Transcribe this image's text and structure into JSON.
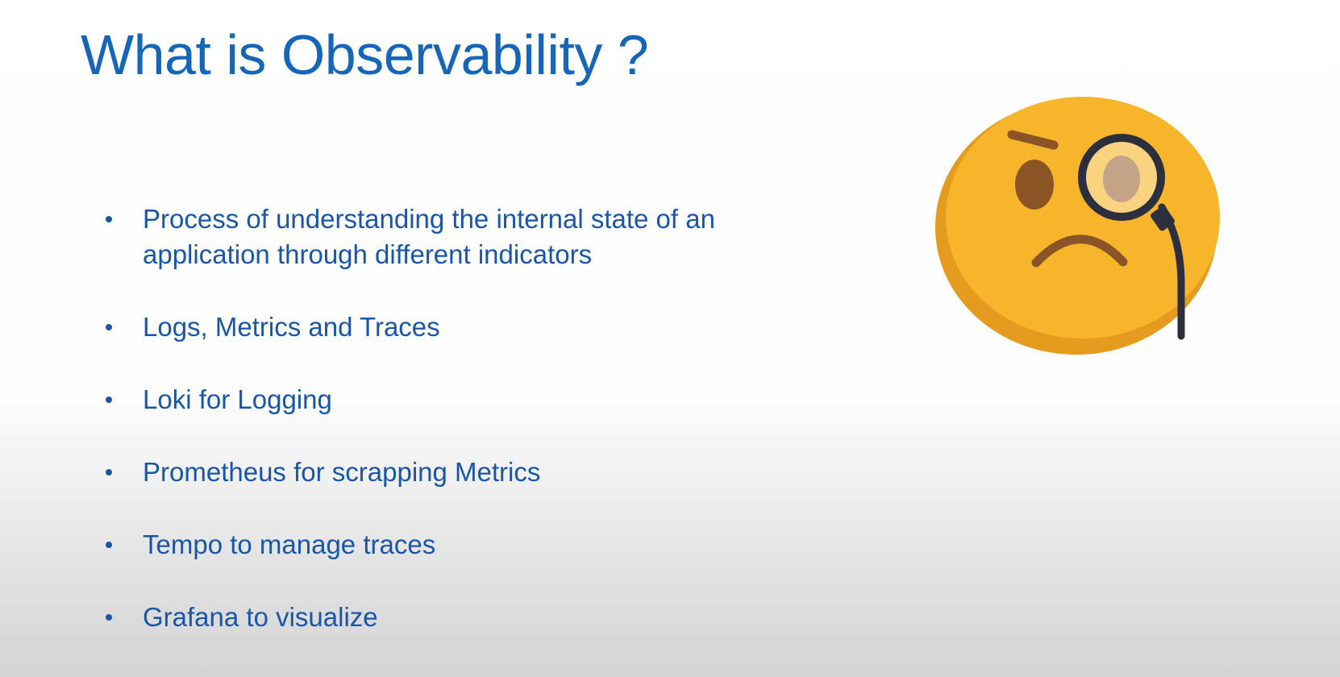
{
  "slide": {
    "title": "What is Observability ?",
    "bullets": [
      "Process of understanding the internal state of an application through different indicators",
      "Logs, Metrics and Traces",
      "Loki for Logging",
      "Prometheus for scrapping Metrics",
      "Tempo to manage traces",
      "Grafana to visualize"
    ],
    "illustration": {
      "icon": "face-with-monocle-icon",
      "colors": {
        "face": "#f6b52a",
        "face_shadow": "#e59b1e",
        "eye": "#8a5424",
        "monocle_rim": "#2c2f3d",
        "lens": "#c5a387"
      }
    },
    "colors": {
      "title": "#1565b9",
      "text": "#1a56a8"
    }
  }
}
